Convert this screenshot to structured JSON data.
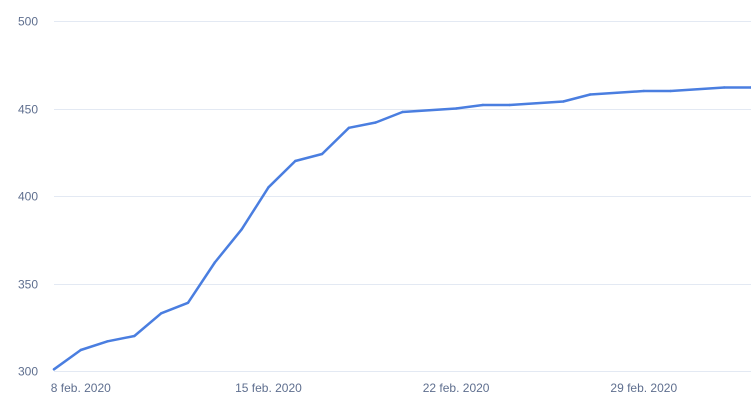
{
  "chart_data": {
    "type": "line",
    "title": "",
    "xlabel": "",
    "ylabel": "",
    "ylim": [
      300,
      500
    ],
    "yticks": [
      300,
      350,
      400,
      450,
      500
    ],
    "xtick_labels": [
      "8 feb. 2020",
      "15 feb. 2020",
      "22 feb. 2020",
      "29 feb. 2020"
    ],
    "xtick_dates": [
      "2020-02-08",
      "2020-02-15",
      "2020-02-22",
      "2020-02-29"
    ],
    "grid": true,
    "legend": "none",
    "line_color": "#4a7ee0",
    "series": [
      {
        "x": [
          "2020-02-07",
          "2020-02-08",
          "2020-02-09",
          "2020-02-10",
          "2020-02-11",
          "2020-02-12",
          "2020-02-13",
          "2020-02-14",
          "2020-02-15",
          "2020-02-16",
          "2020-02-17",
          "2020-02-18",
          "2020-02-19",
          "2020-02-20",
          "2020-02-21",
          "2020-02-22",
          "2020-02-23",
          "2020-02-24",
          "2020-02-25",
          "2020-02-26",
          "2020-02-27",
          "2020-02-28",
          "2020-02-29",
          "2020-03-01",
          "2020-03-02",
          "2020-03-03",
          "2020-03-04"
        ],
        "y": [
          301,
          312,
          317,
          320,
          333,
          339,
          362,
          381,
          405,
          420,
          424,
          439,
          442,
          448,
          449,
          450,
          452,
          452,
          453,
          454,
          458,
          459,
          460,
          460,
          461,
          462,
          462
        ]
      }
    ]
  }
}
